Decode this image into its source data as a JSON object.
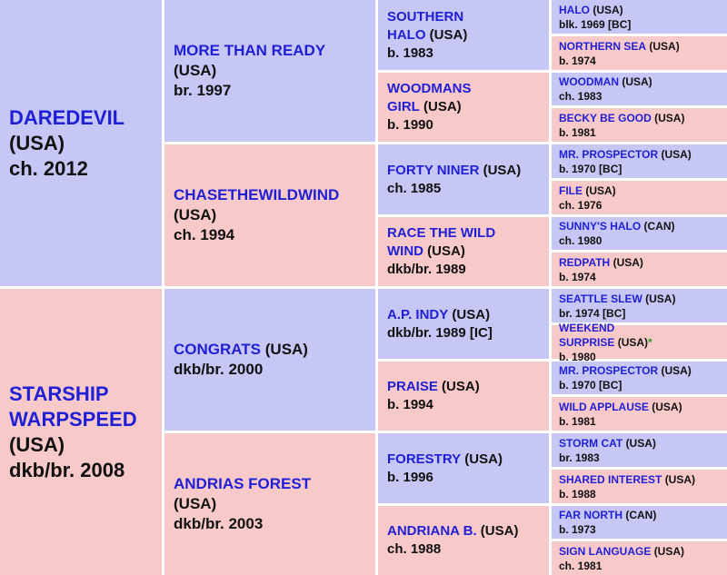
{
  "gen1": [
    {
      "name_lines": [
        "DAREDEVIL"
      ],
      "country": "(USA)",
      "detail": "ch. 2012",
      "sex": "male"
    },
    {
      "name_lines": [
        "STARSHIP",
        "WARPSPEED"
      ],
      "country": "(USA)",
      "detail": "dkb/br. 2008",
      "sex": "female"
    }
  ],
  "gen2": [
    {
      "name_lines": [
        "MORE THAN READY"
      ],
      "country": "(USA)",
      "detail": "br. 1997",
      "sex": "male"
    },
    {
      "name_lines": [
        "CHASETHEWILDWIND"
      ],
      "country": "(USA)",
      "detail": "ch. 1994",
      "sex": "female"
    },
    {
      "name_lines": [
        "CONGRATS"
      ],
      "country": "(USA)",
      "detail": "dkb/br. 2000",
      "sex": "male"
    },
    {
      "name_lines": [
        "ANDRIAS FOREST"
      ],
      "country": "(USA)",
      "detail": "dkb/br. 2003",
      "sex": "female"
    }
  ],
  "gen3": [
    {
      "name_lines": [
        "SOUTHERN",
        "HALO"
      ],
      "country": "(USA)",
      "detail": "b. 1983",
      "sex": "male"
    },
    {
      "name_lines": [
        "WOODMANS",
        "GIRL"
      ],
      "country": "(USA)",
      "detail": "b. 1990",
      "sex": "female"
    },
    {
      "name_lines": [
        "FORTY NINER"
      ],
      "country": "(USA)",
      "detail": "ch. 1985",
      "sex": "male"
    },
    {
      "name_lines": [
        "RACE THE WILD",
        "WIND"
      ],
      "country": "(USA)",
      "detail": "dkb/br. 1989",
      "sex": "female"
    },
    {
      "name_lines": [
        "A.P. INDY"
      ],
      "country": "(USA)",
      "detail": "dkb/br. 1989 [IC]",
      "sex": "male"
    },
    {
      "name_lines": [
        "PRAISE"
      ],
      "country": "(USA)",
      "detail": "b. 1994",
      "sex": "female"
    },
    {
      "name_lines": [
        "FORESTRY"
      ],
      "country": "(USA)",
      "detail": "b. 1996",
      "sex": "male"
    },
    {
      "name_lines": [
        "ANDRIANA B."
      ],
      "country": "(USA)",
      "detail": "ch. 1988",
      "sex": "female"
    }
  ],
  "gen4": [
    {
      "name_lines": [
        "HALO"
      ],
      "country": "(USA)",
      "detail": "blk. 1969 [BC]",
      "sex": "male"
    },
    {
      "name_lines": [
        "NORTHERN SEA"
      ],
      "country": "(USA)",
      "detail": "b. 1974",
      "sex": "female"
    },
    {
      "name_lines": [
        "WOODMAN"
      ],
      "country": "(USA)",
      "detail": "ch. 1983",
      "sex": "male"
    },
    {
      "name_lines": [
        "BECKY BE GOOD"
      ],
      "country": "(USA)",
      "detail": "b. 1981",
      "sex": "female"
    },
    {
      "name_lines": [
        "MR. PROSPECTOR"
      ],
      "country": "(USA)",
      "detail": "b. 1970 [BC]",
      "sex": "male"
    },
    {
      "name_lines": [
        "FILE"
      ],
      "country": "(USA)",
      "detail": "ch. 1976",
      "sex": "female"
    },
    {
      "name_lines": [
        "SUNNY'S HALO"
      ],
      "country": "(CAN)",
      "detail": "ch. 1980",
      "sex": "male"
    },
    {
      "name_lines": [
        "REDPATH"
      ],
      "country": "(USA)",
      "detail": "b. 1974",
      "sex": "female"
    },
    {
      "name_lines": [
        "SEATTLE SLEW"
      ],
      "country": "(USA)",
      "detail": "br. 1974 [BC]",
      "sex": "male"
    },
    {
      "name_lines": [
        "WEEKEND",
        "SURPRISE"
      ],
      "country": "(USA)",
      "marker": "*",
      "detail": "b. 1980",
      "sex": "female"
    },
    {
      "name_lines": [
        "MR. PROSPECTOR"
      ],
      "country": "(USA)",
      "detail": "b. 1970 [BC]",
      "sex": "male"
    },
    {
      "name_lines": [
        "WILD APPLAUSE"
      ],
      "country": "(USA)",
      "detail": "b. 1981",
      "sex": "female"
    },
    {
      "name_lines": [
        "STORM CAT"
      ],
      "country": "(USA)",
      "detail": "br. 1983",
      "sex": "male"
    },
    {
      "name_lines": [
        "SHARED INTEREST"
      ],
      "country": "(USA)",
      "detail": "b. 1988",
      "sex": "female"
    },
    {
      "name_lines": [
        "FAR NORTH"
      ],
      "country": "(CAN)",
      "detail": "b. 1973",
      "sex": "male"
    },
    {
      "name_lines": [
        "SIGN LANGUAGE"
      ],
      "country": "(USA)",
      "detail": "ch. 1981",
      "sex": "female"
    }
  ]
}
